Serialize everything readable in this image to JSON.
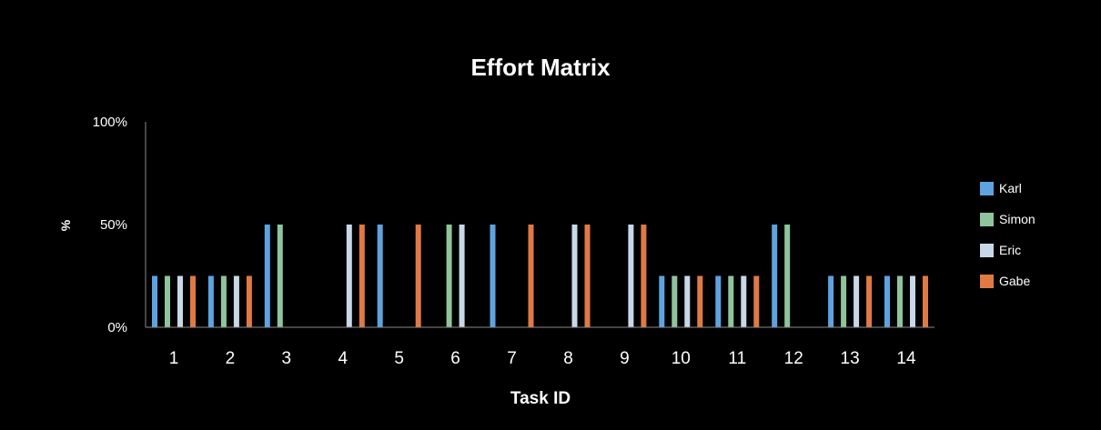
{
  "chart_data": {
    "type": "bar",
    "title": "Effort Matrix",
    "xlabel": "Task ID",
    "ylabel": "%",
    "ylim": [
      0,
      100
    ],
    "yticks": [
      "0%",
      "50%",
      "100%"
    ],
    "ytick_values": [
      0,
      50,
      100
    ],
    "grid": false,
    "legend_position": "right",
    "categories": [
      "1",
      "2",
      "3",
      "4",
      "5",
      "6",
      "7",
      "8",
      "9",
      "10",
      "11",
      "12",
      "13",
      "14"
    ],
    "series": [
      {
        "name": "Karl",
        "color": "#5ea3e0",
        "values": [
          25,
          25,
          50,
          0,
          50,
          0,
          50,
          0,
          0,
          25,
          25,
          50,
          25,
          25
        ]
      },
      {
        "name": "Simon",
        "color": "#8fc49c",
        "values": [
          25,
          25,
          50,
          0,
          0,
          50,
          0,
          0,
          0,
          25,
          25,
          50,
          25,
          25
        ]
      },
      {
        "name": "Eric",
        "color": "#c8d8e6",
        "values": [
          25,
          25,
          0,
          50,
          0,
          50,
          0,
          50,
          50,
          25,
          25,
          0,
          25,
          25
        ]
      },
      {
        "name": "Gabe",
        "color": "#e07a45",
        "values": [
          25,
          25,
          0,
          50,
          50,
          0,
          50,
          50,
          50,
          25,
          25,
          0,
          25,
          25
        ]
      }
    ],
    "colors": {
      "background": "#000000",
      "text": "#ffffff",
      "axis": "#8a8a8a"
    }
  }
}
